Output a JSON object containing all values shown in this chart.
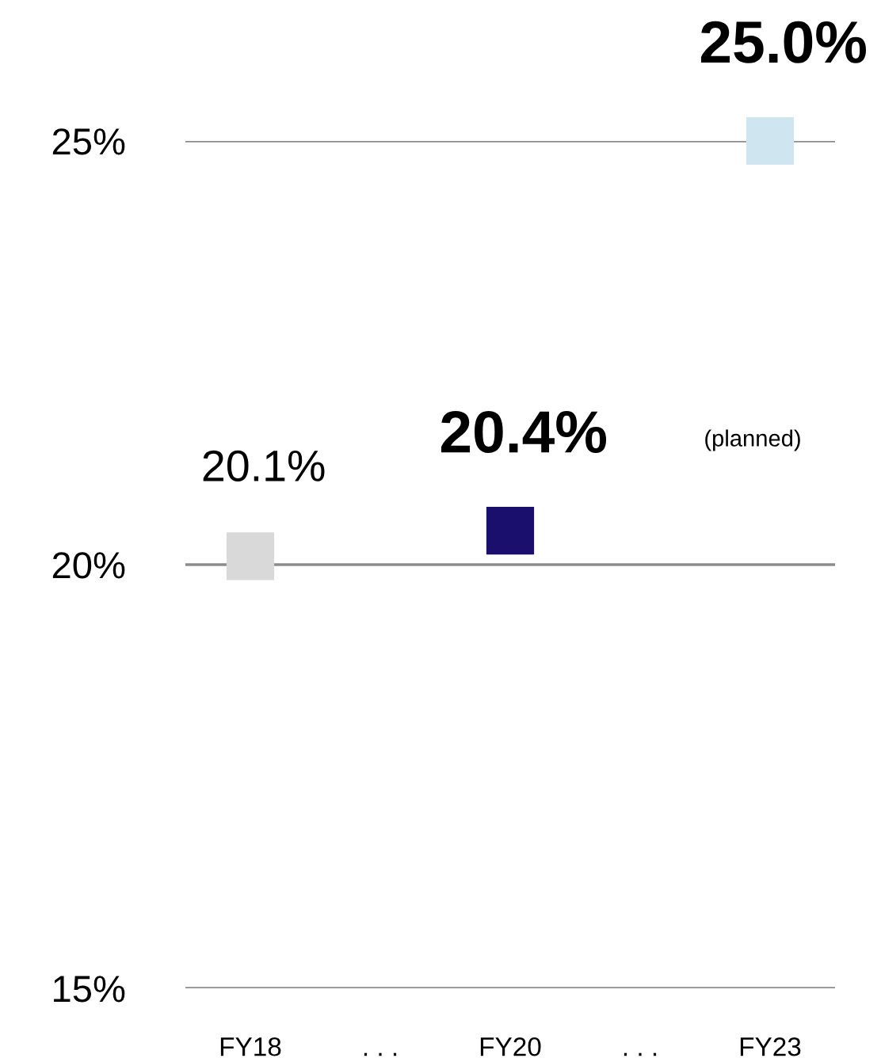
{
  "chart_data": {
    "type": "scatter",
    "categories": [
      "FY18",
      ". . .",
      "FY20",
      ". . .",
      "FY23"
    ],
    "values": [
      20.1,
      null,
      20.4,
      null,
      25.0
    ],
    "colors": [
      "#d9d9d9",
      null,
      "#1b0f6e",
      null,
      "#cfe6f1"
    ],
    "value_labels": [
      "20.1%",
      null,
      "20.4%",
      null,
      "25.0%"
    ],
    "annotations": [
      "(planned)"
    ],
    "marker": "square",
    "ylim": [
      15,
      25
    ],
    "yticks": [
      {
        "value": 15,
        "label": "15%"
      },
      {
        "value": 20,
        "label": "20%"
      },
      {
        "value": 25,
        "label": "25%"
      }
    ],
    "grid": "y",
    "legend": false
  }
}
